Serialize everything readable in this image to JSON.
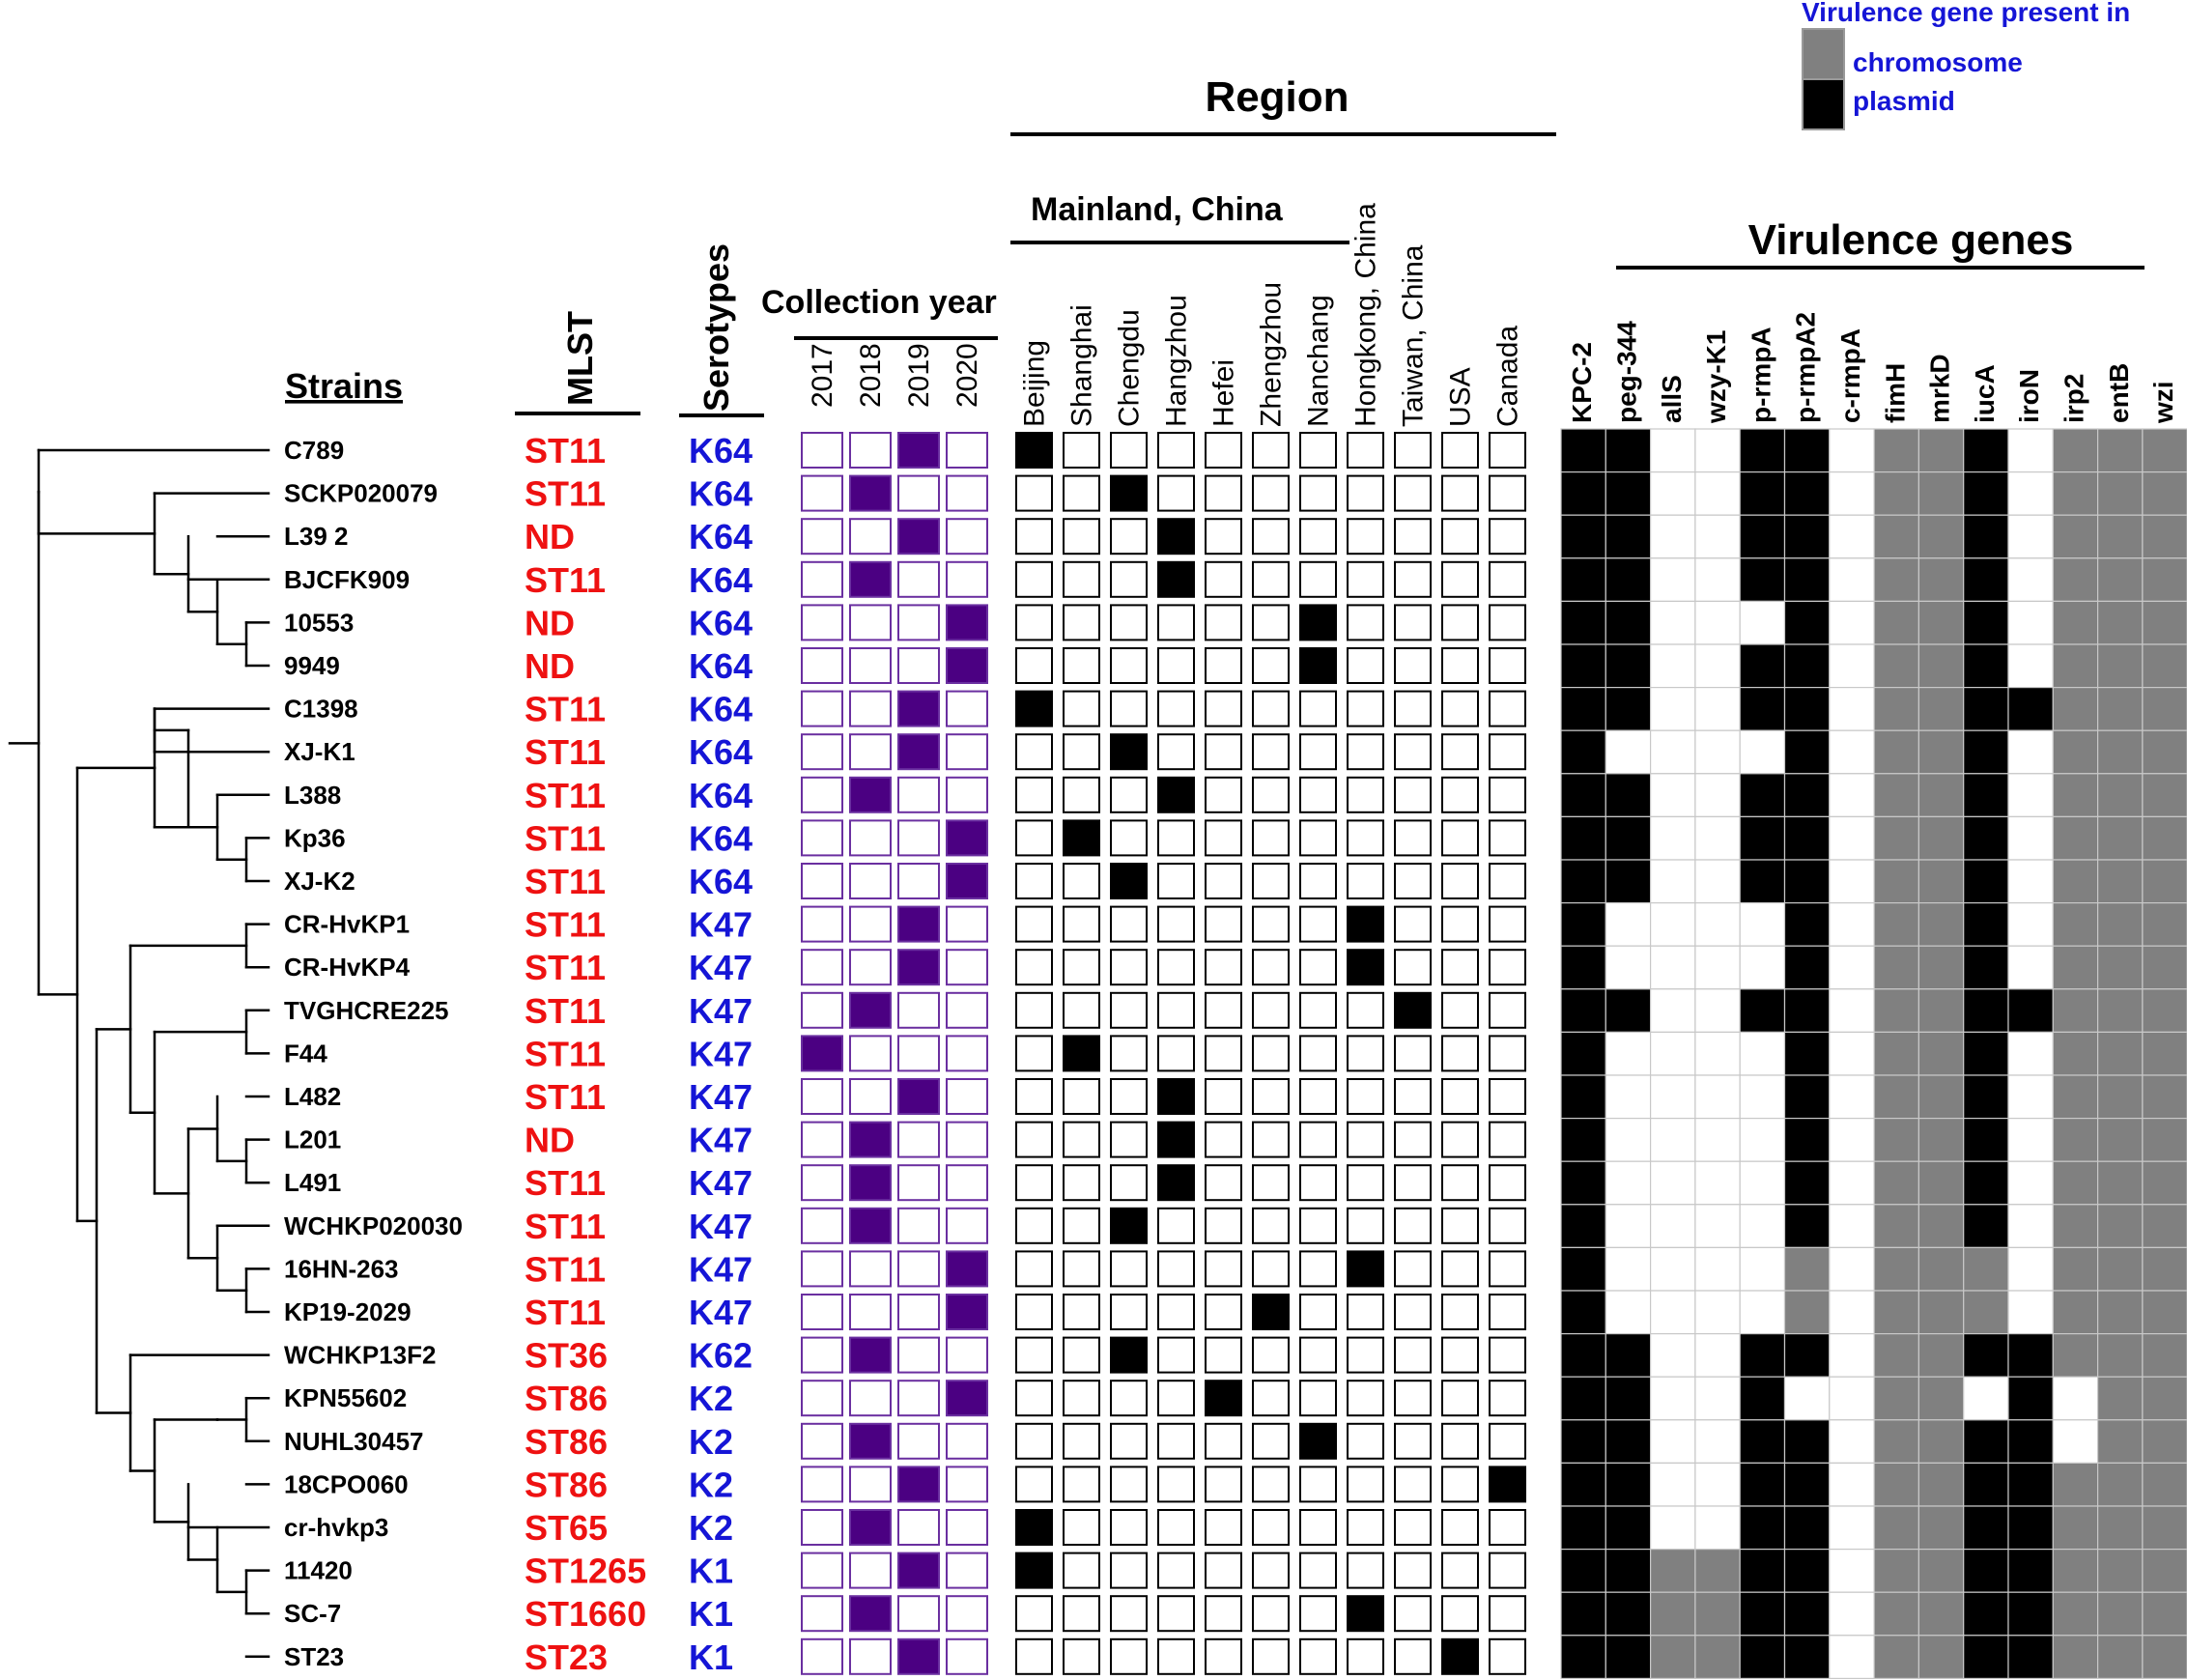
{
  "headers": {
    "strains": "Strains",
    "mlst": "MLST",
    "serotypes": "Serotypes",
    "collection_year": "Collection year",
    "region": "Region",
    "mainland": "Mainland, China",
    "virulence": "Virulence genes"
  },
  "legend": {
    "title": "Virulence gene present in",
    "items": [
      {
        "label": "chromosome",
        "color": "#808080"
      },
      {
        "label": "plasmid",
        "color": "#000000"
      }
    ],
    "title_color": "#1515d6"
  },
  "colors": {
    "mlst": "#ee1111",
    "serotype": "#1515d6",
    "year_fill": "#4b0082",
    "year_border": "#6a2fa0"
  },
  "chart_data": {
    "type": "table",
    "years": [
      "2017",
      "2018",
      "2019",
      "2020"
    ],
    "regions": [
      "Beijing",
      "Shanghai",
      "Chengdu",
      "Hangzhou",
      "Hefei",
      "Zhengzhou",
      "Nanchang",
      "Hongkong, China",
      "Taiwan, China",
      "USA",
      "Canada"
    ],
    "genes": [
      "KPC-2",
      "peg-344",
      "allS",
      "wzy-K1",
      "p-rmpA",
      "p-rmpA2",
      "c-rmpA",
      "fimH",
      "mrkD",
      "iucA",
      "iroN",
      "irp2",
      "entB",
      "wzi"
    ],
    "gene_code": "0 = absent, 1 = chromosome, 2 = plasmid",
    "strains": [
      {
        "name": "C789",
        "mlst": "ST11",
        "serotype": "K64",
        "year": "2019",
        "region": "Beijing",
        "genes": [
          2,
          2,
          0,
          0,
          2,
          2,
          0,
          1,
          1,
          2,
          0,
          1,
          1,
          1
        ]
      },
      {
        "name": "SCKP020079",
        "mlst": "ST11",
        "serotype": "K64",
        "year": "2018",
        "region": "Chengdu",
        "genes": [
          2,
          2,
          0,
          0,
          2,
          2,
          0,
          1,
          1,
          2,
          0,
          1,
          1,
          1
        ]
      },
      {
        "name": "L39 2",
        "mlst": "ND",
        "serotype": "K64",
        "year": "2019",
        "region": "Hangzhou",
        "genes": [
          2,
          2,
          0,
          0,
          2,
          2,
          0,
          1,
          1,
          2,
          0,
          1,
          1,
          1
        ]
      },
      {
        "name": "BJCFK909",
        "mlst": "ST11",
        "serotype": "K64",
        "year": "2018",
        "region": "Hangzhou",
        "genes": [
          2,
          2,
          0,
          0,
          2,
          2,
          0,
          1,
          1,
          2,
          0,
          1,
          1,
          1
        ]
      },
      {
        "name": "10553",
        "mlst": "ND",
        "serotype": "K64",
        "year": "2020",
        "region": "Nanchang",
        "genes": [
          2,
          2,
          0,
          0,
          0,
          2,
          0,
          1,
          1,
          2,
          0,
          1,
          1,
          1
        ]
      },
      {
        "name": "9949",
        "mlst": "ND",
        "serotype": "K64",
        "year": "2020",
        "region": "Nanchang",
        "genes": [
          2,
          2,
          0,
          0,
          2,
          2,
          0,
          1,
          1,
          2,
          0,
          1,
          1,
          1
        ]
      },
      {
        "name": "C1398",
        "mlst": "ST11",
        "serotype": "K64",
        "year": "2019",
        "region": "Beijing",
        "genes": [
          2,
          2,
          0,
          0,
          2,
          2,
          0,
          1,
          1,
          2,
          2,
          1,
          1,
          1
        ]
      },
      {
        "name": "XJ-K1",
        "mlst": "ST11",
        "serotype": "K64",
        "year": "2019",
        "region": "Chengdu",
        "genes": [
          2,
          0,
          0,
          0,
          0,
          2,
          0,
          1,
          1,
          2,
          0,
          1,
          1,
          1
        ]
      },
      {
        "name": "L388",
        "mlst": "ST11",
        "serotype": "K64",
        "year": "2018",
        "region": "Hangzhou",
        "genes": [
          2,
          2,
          0,
          0,
          2,
          2,
          0,
          1,
          1,
          2,
          0,
          1,
          1,
          1
        ]
      },
      {
        "name": "Kp36",
        "mlst": "ST11",
        "serotype": "K64",
        "year": "2020",
        "region": "Shanghai",
        "genes": [
          2,
          2,
          0,
          0,
          2,
          2,
          0,
          1,
          1,
          2,
          0,
          1,
          1,
          1
        ]
      },
      {
        "name": "XJ-K2",
        "mlst": "ST11",
        "serotype": "K64",
        "year": "2020",
        "region": "Chengdu",
        "genes": [
          2,
          2,
          0,
          0,
          2,
          2,
          0,
          1,
          1,
          2,
          0,
          1,
          1,
          1
        ]
      },
      {
        "name": "CR-HvKP1",
        "mlst": "ST11",
        "serotype": "K47",
        "year": "2019",
        "region": "Hongkong, China",
        "genes": [
          2,
          0,
          0,
          0,
          0,
          2,
          0,
          1,
          1,
          2,
          0,
          1,
          1,
          1
        ]
      },
      {
        "name": "CR-HvKP4",
        "mlst": "ST11",
        "serotype": "K47",
        "year": "2019",
        "region": "Hongkong, China",
        "genes": [
          2,
          0,
          0,
          0,
          0,
          2,
          0,
          1,
          1,
          2,
          0,
          1,
          1,
          1
        ]
      },
      {
        "name": "TVGHCRE225",
        "mlst": "ST11",
        "serotype": "K47",
        "year": "2018",
        "region": "Taiwan, China",
        "genes": [
          2,
          2,
          0,
          0,
          2,
          2,
          0,
          1,
          1,
          2,
          2,
          1,
          1,
          1
        ]
      },
      {
        "name": "F44",
        "mlst": "ST11",
        "serotype": "K47",
        "year": "2017",
        "region": "Shanghai",
        "genes": [
          2,
          0,
          0,
          0,
          0,
          2,
          0,
          1,
          1,
          2,
          0,
          1,
          1,
          1
        ]
      },
      {
        "name": "L482",
        "mlst": "ST11",
        "serotype": "K47",
        "year": "2019",
        "region": "Hangzhou",
        "genes": [
          2,
          0,
          0,
          0,
          0,
          2,
          0,
          1,
          1,
          2,
          0,
          1,
          1,
          1
        ]
      },
      {
        "name": "L201",
        "mlst": "ND",
        "serotype": "K47",
        "year": "2018",
        "region": "Hangzhou",
        "genes": [
          2,
          0,
          0,
          0,
          0,
          2,
          0,
          1,
          1,
          2,
          0,
          1,
          1,
          1
        ]
      },
      {
        "name": "L491",
        "mlst": "ST11",
        "serotype": "K47",
        "year": "2018",
        "region": "Hangzhou",
        "genes": [
          2,
          0,
          0,
          0,
          0,
          2,
          0,
          1,
          1,
          2,
          0,
          1,
          1,
          1
        ]
      },
      {
        "name": "WCHKP020030",
        "mlst": "ST11",
        "serotype": "K47",
        "year": "2018",
        "region": "Chengdu",
        "genes": [
          2,
          0,
          0,
          0,
          0,
          2,
          0,
          1,
          1,
          2,
          0,
          1,
          1,
          1
        ]
      },
      {
        "name": "16HN-263",
        "mlst": "ST11",
        "serotype": "K47",
        "year": "2020",
        "region": "Hongkong, China",
        "genes": [
          2,
          0,
          0,
          0,
          0,
          1,
          0,
          1,
          1,
          1,
          0,
          1,
          1,
          1
        ]
      },
      {
        "name": "KP19-2029",
        "mlst": "ST11",
        "serotype": "K47",
        "year": "2020",
        "region": "Zhengzhou",
        "genes": [
          2,
          0,
          0,
          0,
          0,
          1,
          0,
          1,
          1,
          1,
          0,
          1,
          1,
          1
        ]
      },
      {
        "name": "WCHKP13F2",
        "mlst": "ST36",
        "serotype": "K62",
        "year": "2018",
        "region": "Chengdu",
        "genes": [
          2,
          2,
          0,
          0,
          2,
          2,
          0,
          1,
          1,
          2,
          2,
          1,
          1,
          1
        ]
      },
      {
        "name": "KPN55602",
        "mlst": "ST86",
        "serotype": "K2",
        "year": "2020",
        "region": "Hefei",
        "genes": [
          2,
          2,
          0,
          0,
          2,
          0,
          0,
          1,
          1,
          0,
          2,
          0,
          1,
          1
        ]
      },
      {
        "name": "NUHL30457",
        "mlst": "ST86",
        "serotype": "K2",
        "year": "2018",
        "region": "Nanchang",
        "genes": [
          2,
          2,
          0,
          0,
          2,
          2,
          0,
          1,
          1,
          2,
          2,
          0,
          1,
          1
        ]
      },
      {
        "name": "18CPO060",
        "mlst": "ST86",
        "serotype": "K2",
        "year": "2019",
        "region": "Canada",
        "genes": [
          2,
          2,
          0,
          0,
          2,
          2,
          0,
          1,
          1,
          2,
          2,
          1,
          1,
          1
        ]
      },
      {
        "name": "cr-hvkp3",
        "mlst": "ST65",
        "serotype": "K2",
        "year": "2018",
        "region": "Beijing",
        "genes": [
          2,
          2,
          0,
          0,
          2,
          2,
          0,
          1,
          1,
          2,
          2,
          1,
          1,
          1
        ]
      },
      {
        "name": "11420",
        "mlst": "ST1265",
        "serotype": "K1",
        "year": "2019",
        "region": "Beijing",
        "genes": [
          2,
          2,
          1,
          1,
          2,
          2,
          0,
          1,
          1,
          2,
          2,
          1,
          1,
          1
        ]
      },
      {
        "name": "SC-7",
        "mlst": "ST1660",
        "serotype": "K1",
        "year": "2018",
        "region": "Hongkong, China",
        "genes": [
          2,
          2,
          1,
          1,
          2,
          2,
          0,
          1,
          1,
          2,
          2,
          1,
          1,
          1
        ]
      },
      {
        "name": "ST23",
        "mlst": "ST23",
        "serotype": "K1",
        "year": "2019",
        "region": "USA",
        "genes": [
          2,
          2,
          1,
          1,
          2,
          2,
          0,
          1,
          1,
          2,
          2,
          1,
          1,
          1
        ]
      }
    ]
  }
}
